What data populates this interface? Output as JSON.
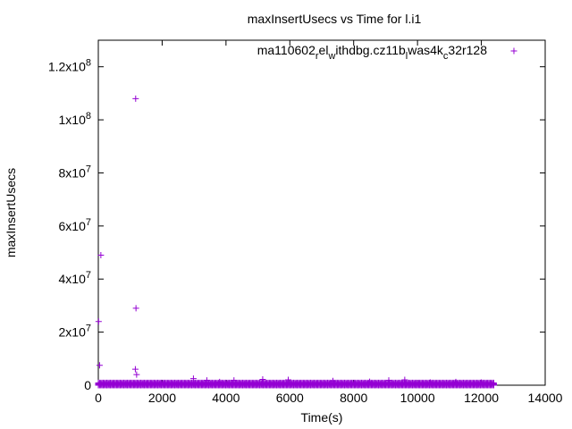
{
  "chart_data": {
    "type": "scatter",
    "title": "maxInsertUsecs vs Time for l.i1",
    "xlabel": "Time(s)",
    "ylabel": "maxInsertUsecs",
    "xlim": [
      0,
      14000
    ],
    "ylim": [
      0,
      130000000
    ],
    "x_ticks": [
      0,
      2000,
      4000,
      6000,
      8000,
      10000,
      12000,
      14000
    ],
    "x_tick_labels": [
      "0",
      "2000",
      "4000",
      "6000",
      "8000",
      "10000",
      "12000",
      "14000"
    ],
    "y_ticks": [
      {
        "value": 0,
        "mantissa": "0",
        "exp": ""
      },
      {
        "value": 20000000,
        "mantissa": "2x10",
        "exp": "7"
      },
      {
        "value": 40000000,
        "mantissa": "4x10",
        "exp": "7"
      },
      {
        "value": 60000000,
        "mantissa": "6x10",
        "exp": "7"
      },
      {
        "value": 80000000,
        "mantissa": "8x10",
        "exp": "7"
      },
      {
        "value": 100000000,
        "mantissa": "1x10",
        "exp": "8"
      },
      {
        "value": 120000000,
        "mantissa": "1.2x10",
        "exp": "8"
      }
    ],
    "grid": false,
    "legend_position": "top-right",
    "legend_label_parts": [
      {
        "t": "ma110602",
        "s": "base"
      },
      {
        "t": "r",
        "s": "sub"
      },
      {
        "t": "el",
        "s": "base"
      },
      {
        "t": "w",
        "s": "sub"
      },
      {
        "t": "ithdbg.cz11b",
        "s": "base"
      },
      {
        "t": "l",
        "s": "sub"
      },
      {
        "t": "was4k",
        "s": "base"
      },
      {
        "t": "c",
        "s": "sub"
      },
      {
        "t": "32r128",
        "s": "base"
      }
    ],
    "series_color": "#9400d3",
    "marker": "plus",
    "series": [
      {
        "name": "ma110602_rel_withdbg.cz11b_lwas4k_c32r128",
        "points": [
          [
            10,
            24000000
          ],
          [
            40,
            7500000
          ],
          [
            80,
            49000000
          ],
          [
            1170,
            108000000
          ],
          [
            1180,
            29000000
          ],
          [
            1160,
            6000000
          ],
          [
            1200,
            4000000
          ],
          [
            2980,
            2500000
          ],
          [
            3400,
            1800000
          ],
          [
            3800,
            1200000
          ],
          [
            4250,
            1800000
          ],
          [
            5150,
            2200000
          ],
          [
            5950,
            2000000
          ],
          [
            7350,
            1600000
          ],
          [
            8500,
            1300000
          ],
          [
            9100,
            1800000
          ],
          [
            9600,
            2000000
          ],
          [
            10400,
            1000000
          ],
          [
            11200,
            1200000
          ],
          [
            12000,
            1000000
          ]
        ],
        "dense_band": {
          "x_start": 0,
          "x_end": 12400,
          "step": 38,
          "y_values": [
            0,
            250000,
            500000,
            900000
          ]
        }
      }
    ]
  }
}
